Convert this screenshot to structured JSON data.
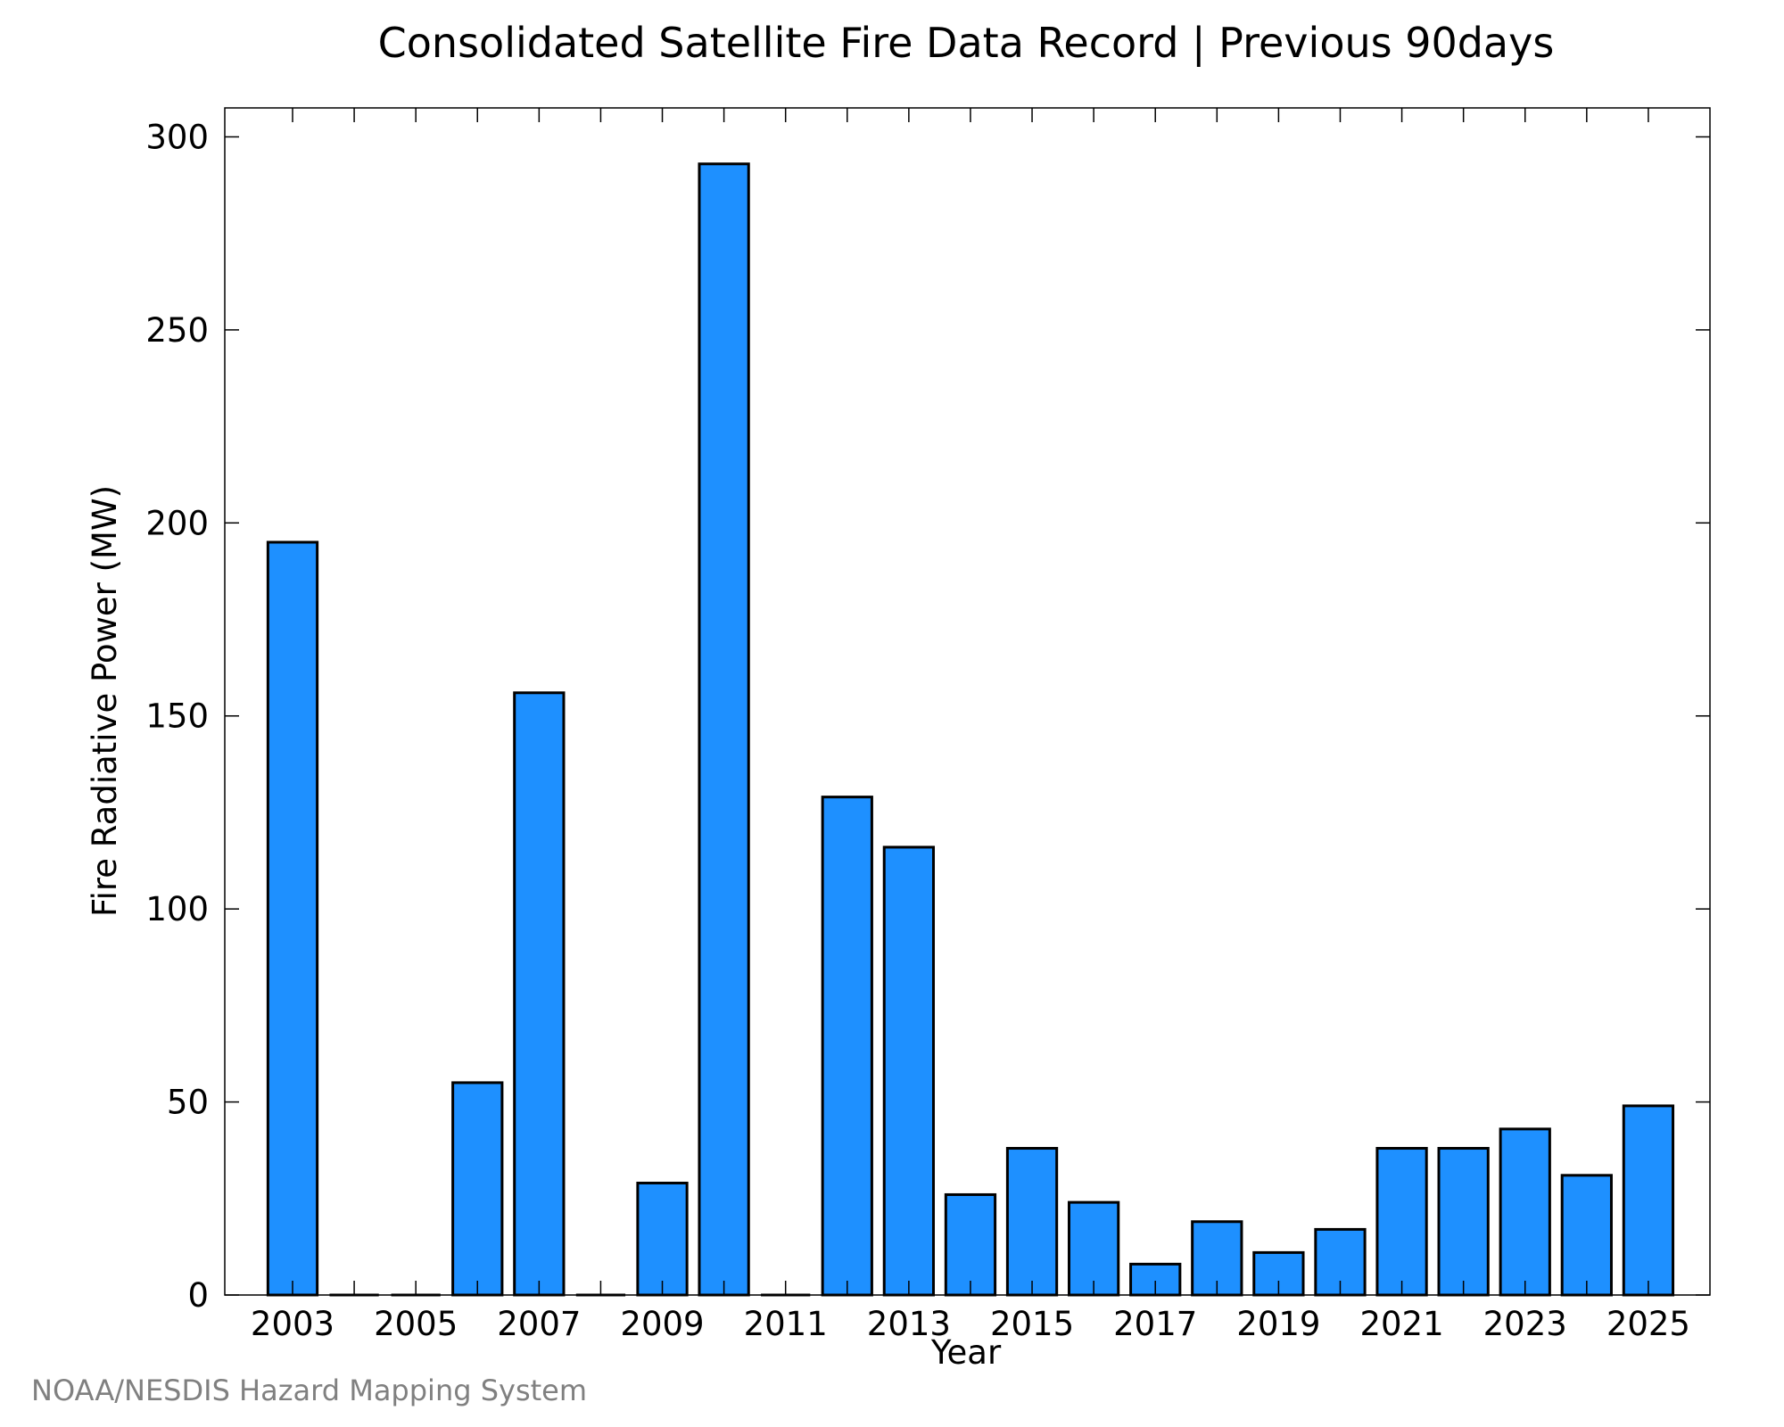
{
  "chart_data": {
    "type": "bar",
    "title": "Consolidated Satellite Fire Data Record | Previous 90days",
    "xlabel": "Year",
    "ylabel": "Fire Radiative Power (MW)",
    "x": [
      2003,
      2004,
      2005,
      2006,
      2007,
      2008,
      2009,
      2010,
      2011,
      2012,
      2013,
      2014,
      2015,
      2016,
      2017,
      2018,
      2019,
      2020,
      2021,
      2022,
      2023,
      2024,
      2025
    ],
    "values": [
      195,
      0,
      0,
      55,
      156,
      0,
      29,
      293,
      0,
      129,
      116,
      26,
      38,
      24,
      8,
      19,
      11,
      17,
      38,
      38,
      43,
      31,
      49
    ],
    "xlim": [
      2001.9,
      2026.0
    ],
    "ylim": [
      0,
      307.5
    ],
    "xticks": [
      "2003",
      "2005",
      "2007",
      "2009",
      "2011",
      "2013",
      "2015",
      "2017",
      "2019",
      "2021",
      "2023",
      "2025"
    ],
    "yticks": [
      "0",
      "50",
      "100",
      "150",
      "200",
      "250",
      "300"
    ],
    "bar_color": "#1E90FF",
    "edge_color": "#000000",
    "grid": false,
    "legend": "none"
  },
  "source_credit": "NOAA/NESDIS Hazard Mapping System"
}
